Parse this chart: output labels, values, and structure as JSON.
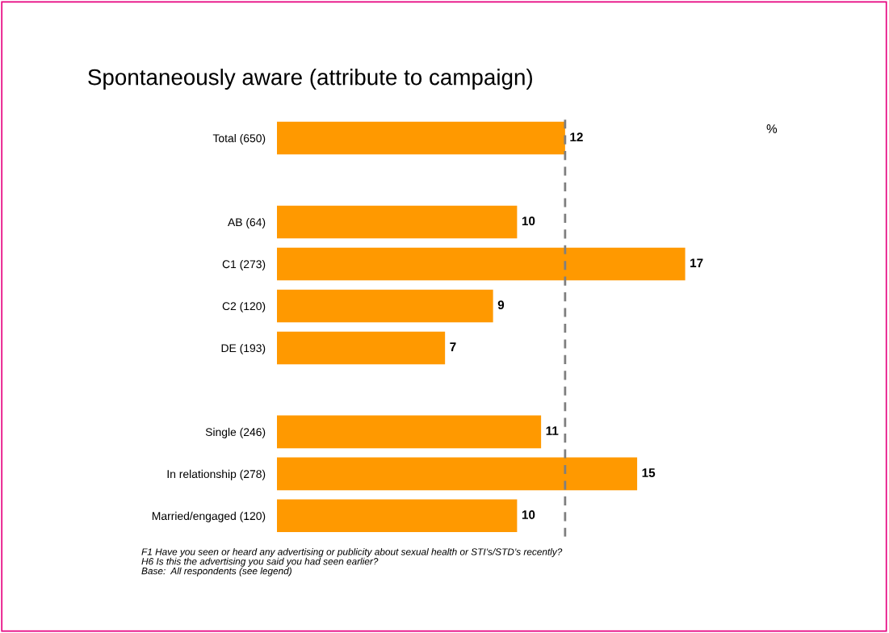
{
  "chart_data": {
    "type": "bar",
    "orientation": "horizontal",
    "title": "Spontaneously aware (attribute to campaign)",
    "categories": [
      "Total (650)",
      null,
      "AB (64)",
      "C1 (273)",
      "C2 (120)",
      "DE (193)",
      null,
      "Single (246)",
      "In relationship (278)",
      "Married/engaged (120)"
    ],
    "series": [
      {
        "color": "#ff9900",
        "values": [
          12,
          null,
          10,
          17,
          9,
          7,
          null,
          11,
          15,
          10
        ]
      }
    ],
    "data_labels": true,
    "ref_lines": [
      {
        "axis": "x",
        "value": 12,
        "color": "#7f7f7f",
        "line_style": "dashed"
      }
    ],
    "annotations": [
      "%",
      "F1 Have you seen or heard any advertising or publicity about sexual health or STI’s/STD’s recently?\nH6 Is this the advertising you said you had seen earlier?\nBase:  All respondents (see legend)"
    ],
    "grid": false,
    "legend": false
  }
}
